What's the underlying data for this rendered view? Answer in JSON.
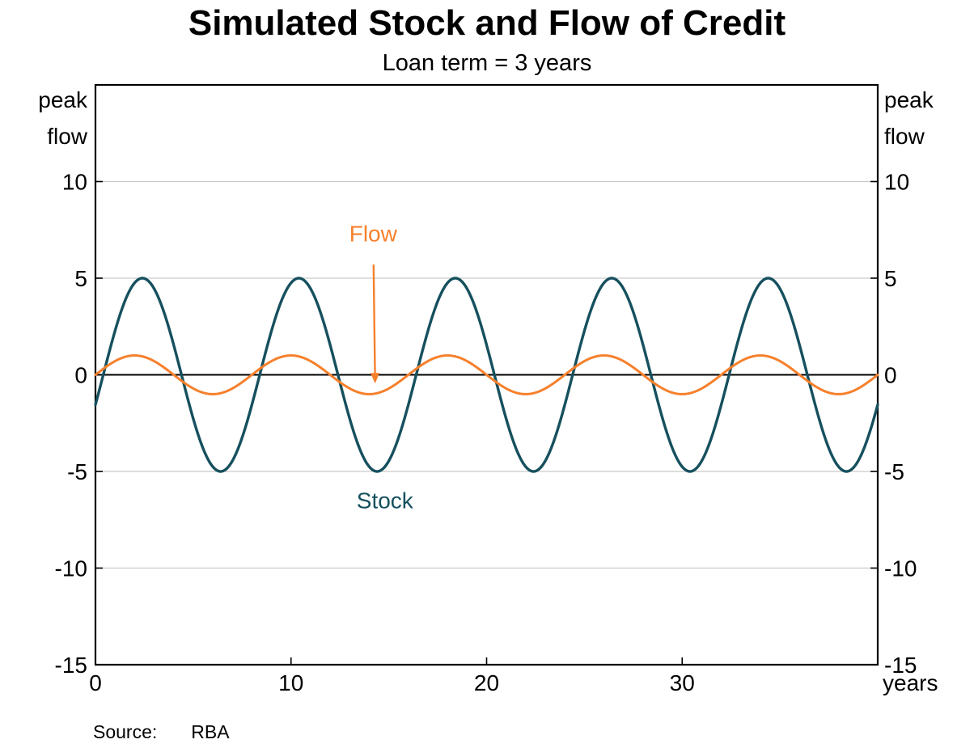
{
  "chart_data": {
    "type": "line",
    "title": "Simulated Stock and Flow of Credit",
    "subtitle": "Loan term = 3 years",
    "xlabel": "years",
    "y_axis_label_left": "peak flow",
    "y_axis_label_right": "peak flow",
    "xlim": [
      0,
      40
    ],
    "ylim": [
      -15,
      15
    ],
    "x_ticks": [
      0,
      10,
      20,
      30
    ],
    "y_ticks": [
      10,
      5,
      0,
      -5,
      -10,
      -15
    ],
    "grid": true,
    "zero_line": true,
    "frame_color": "#000000",
    "grid_color": "#c9c9c9",
    "series": [
      {
        "name": "Stock",
        "color": "#16505e",
        "waveform": "sine",
        "amplitude": 5,
        "period": 8,
        "phase_shift": 0.4,
        "x_step": 0.05,
        "line_width": 3.4
      },
      {
        "name": "Flow",
        "color": "#f6802c",
        "waveform": "sine",
        "amplitude": 1.0,
        "period": 8,
        "phase_shift": 0.0,
        "x_step": 0.05,
        "line_width": 3
      }
    ],
    "annotations": [
      {
        "text": "Flow",
        "x": 14.2,
        "y": 6.9,
        "color": "#f6802c",
        "arrow": {
          "from_x": 14.22,
          "from_y": 5.7,
          "to_x": 14.3,
          "to_y": -0.45
        }
      },
      {
        "text": "Stock",
        "x": 14.8,
        "y": -6.9,
        "color": "#16505e"
      }
    ]
  },
  "source": {
    "label": "Source:",
    "value": "RBA"
  }
}
